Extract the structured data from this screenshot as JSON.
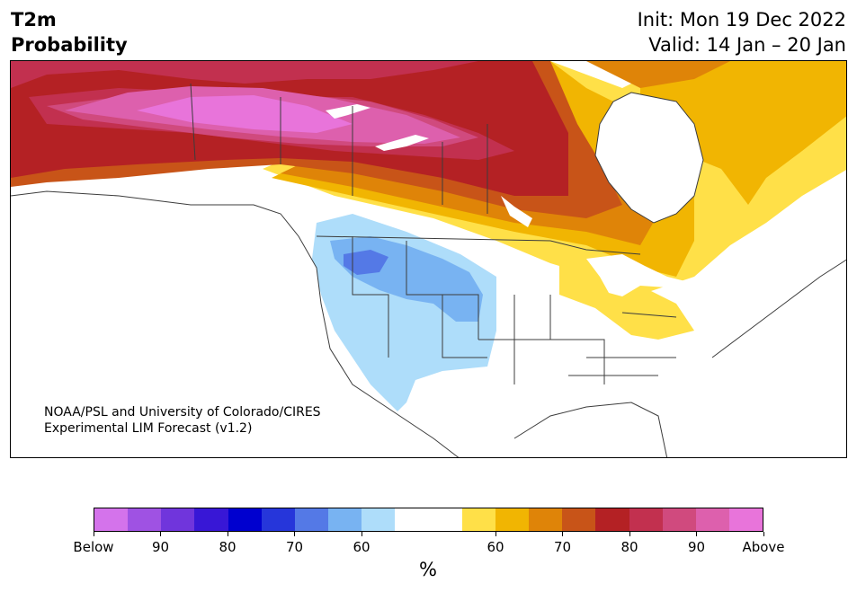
{
  "title": {
    "left_line1": "T2m",
    "left_line2": "Probability",
    "right_line1": "Init: Mon 19 Dec 2022",
    "right_line2": "Valid: 14 Jan – 20 Jan"
  },
  "credit": {
    "line1": "NOAA/PSL and University of Colorado/CIRES",
    "line2": "Experimental LIM Forecast (v1.2)"
  },
  "colorbar": {
    "colors": [
      "#d473eb",
      "#9f52e3",
      "#7035dc",
      "#3817d6",
      "#0000cf",
      "#2636da",
      "#5479e6",
      "#78b3f2",
      "#aeddfa",
      "#ffffff",
      "#ffffff",
      "#ffe048",
      "#f1b502",
      "#df8408",
      "#c85418",
      "#b42124",
      "#c2304f",
      "#d04a7e",
      "#dd60ad",
      "#e874da"
    ],
    "tick_labels": [
      "Below",
      "90",
      "80",
      "70",
      "60",
      "60",
      "70",
      "80",
      "90",
      "Above"
    ],
    "unit": "%"
  },
  "palette": {
    "land": "#ffffff",
    "border": "#3c3c3c",
    "water": "#ffffff"
  }
}
